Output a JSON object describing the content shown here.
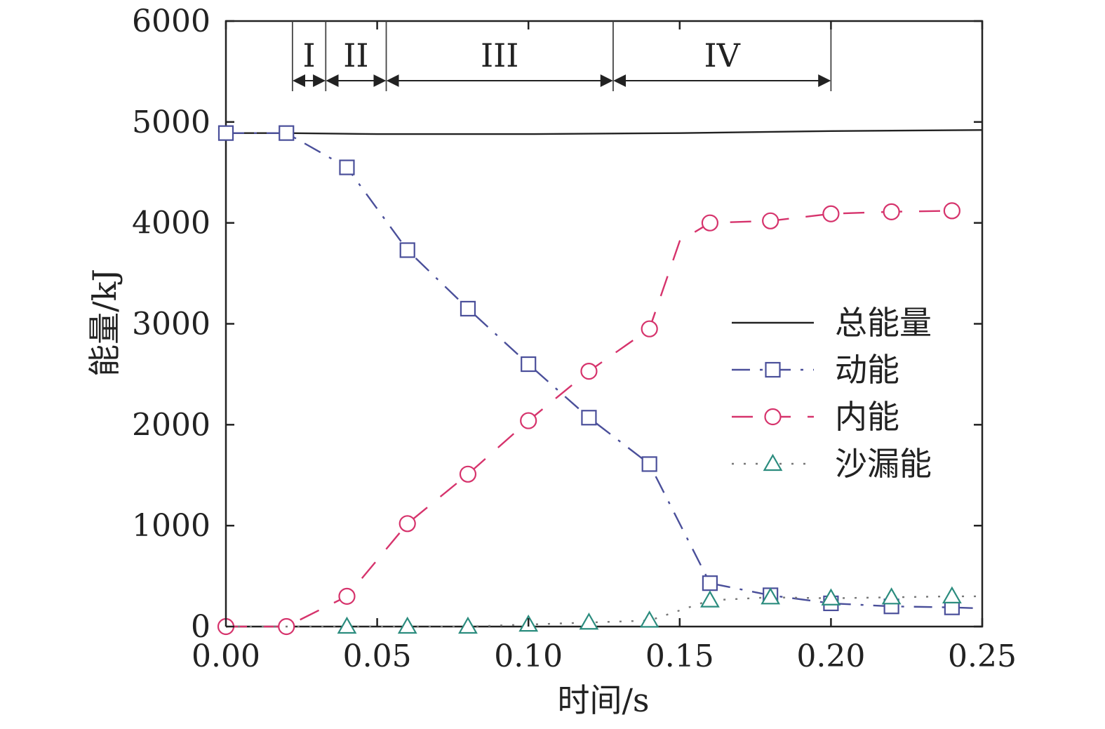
{
  "chart_data": {
    "type": "line",
    "xlabel": "时间/s",
    "ylabel": "能量/kJ",
    "xlim": [
      0,
      0.25
    ],
    "ylim": [
      0,
      6000
    ],
    "xticks": [
      0,
      0.05,
      0.1,
      0.15,
      0.2,
      0.25
    ],
    "xtick_labels": [
      "0.00",
      "0.05",
      "0.10",
      "0.15",
      "0.20",
      "0.25"
    ],
    "yticks": [
      0,
      1000,
      2000,
      3000,
      4000,
      5000,
      6000
    ],
    "ytick_labels": [
      "0",
      "1000",
      "2000",
      "3000",
      "4000",
      "5000",
      "6000"
    ],
    "grid": false,
    "legend_position": "right",
    "phases": [
      {
        "label": "I",
        "start": 0.022,
        "end": 0.033
      },
      {
        "label": "II",
        "start": 0.033,
        "end": 0.053
      },
      {
        "label": "III",
        "start": 0.053,
        "end": 0.128
      },
      {
        "label": "IV",
        "start": 0.128,
        "end": 0.2
      }
    ],
    "series": [
      {
        "name": "总能量",
        "color": "#222222",
        "dash": "",
        "marker": "none",
        "x": [
          0.0,
          0.02,
          0.05,
          0.1,
          0.15,
          0.2,
          0.25
        ],
        "values": [
          4890,
          4890,
          4880,
          4880,
          4890,
          4910,
          4920
        ]
      },
      {
        "name": "动能",
        "color": "#4a4f9a",
        "dash": "26 14 4 14",
        "marker": "square",
        "x": [
          0.0,
          0.02,
          0.04,
          0.06,
          0.08,
          0.1,
          0.12,
          0.14,
          0.16,
          0.18,
          0.2,
          0.22,
          0.24,
          0.25
        ],
        "values": [
          4890,
          4890,
          4550,
          3730,
          3150,
          2600,
          2070,
          1610,
          430,
          310,
          230,
          200,
          190,
          180
        ],
        "marker_points": [
          0,
          1,
          2,
          3,
          4,
          5,
          6,
          7,
          8,
          9,
          10,
          11,
          12
        ]
      },
      {
        "name": "内能",
        "color": "#d6336c",
        "dash": "30 24",
        "marker": "circle",
        "x": [
          0.0,
          0.02,
          0.04,
          0.06,
          0.08,
          0.1,
          0.12,
          0.14,
          0.15,
          0.16,
          0.18,
          0.2,
          0.22,
          0.24
        ],
        "values": [
          0,
          0,
          300,
          1020,
          1510,
          2040,
          2530,
          2950,
          3820,
          4000,
          4020,
          4090,
          4110,
          4120
        ],
        "marker_points": [
          0,
          1,
          2,
          3,
          4,
          5,
          6,
          7,
          9,
          10,
          11,
          12,
          13
        ]
      },
      {
        "name": "沙漏能",
        "color": "#777777",
        "dash": "3 14",
        "marker": "triangle",
        "marker_color": "#2b8c7e",
        "x": [
          0.0,
          0.02,
          0.04,
          0.06,
          0.08,
          0.1,
          0.12,
          0.14,
          0.16,
          0.18,
          0.2,
          0.22,
          0.24,
          0.25
        ],
        "values": [
          0,
          0,
          0,
          0,
          0,
          20,
          40,
          60,
          260,
          290,
          280,
          290,
          300,
          300
        ],
        "marker_points": [
          2,
          3,
          4,
          5,
          6,
          7,
          8,
          9,
          10,
          11,
          12
        ]
      }
    ]
  }
}
